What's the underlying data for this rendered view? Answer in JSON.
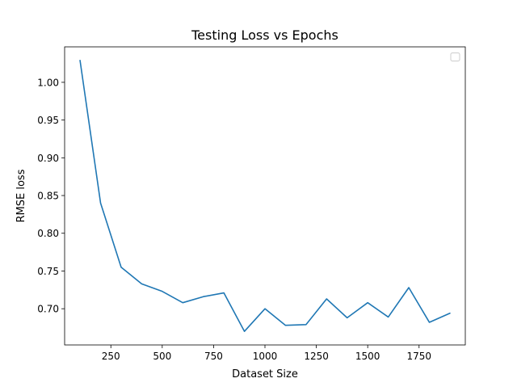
{
  "chart_data": {
    "type": "line",
    "title": "Testing Loss vs Epochs",
    "xlabel": "Dataset Size",
    "ylabel": "RMSE loss",
    "xlim": [
      25,
      1975
    ],
    "ylim": [
      0.652,
      1.047
    ],
    "x_ticks": [
      250,
      500,
      750,
      1000,
      1250,
      1500,
      1750
    ],
    "x_tick_labels": [
      "250",
      "500",
      "750",
      "1000",
      "1250",
      "1500",
      "1750"
    ],
    "y_ticks": [
      0.7,
      0.75,
      0.8,
      0.85,
      0.9,
      0.95,
      1.0
    ],
    "y_tick_labels": [
      "0.70",
      "0.75",
      "0.80",
      "0.85",
      "0.90",
      "0.95",
      "1.00"
    ],
    "grid": false,
    "legend": {
      "placement": "top-right",
      "entries": []
    },
    "series": [
      {
        "color": "#1f77b4",
        "x": [
          100,
          200,
          300,
          400,
          500,
          600,
          700,
          800,
          900,
          1000,
          1100,
          1200,
          1300,
          1400,
          1500,
          1600,
          1700,
          1800,
          1900
        ],
        "values": [
          1.029,
          0.84,
          0.755,
          0.733,
          0.723,
          0.708,
          0.716,
          0.721,
          0.67,
          0.7,
          0.678,
          0.679,
          0.713,
          0.688,
          0.708,
          0.689,
          0.728,
          0.682,
          0.694
        ]
      }
    ]
  }
}
